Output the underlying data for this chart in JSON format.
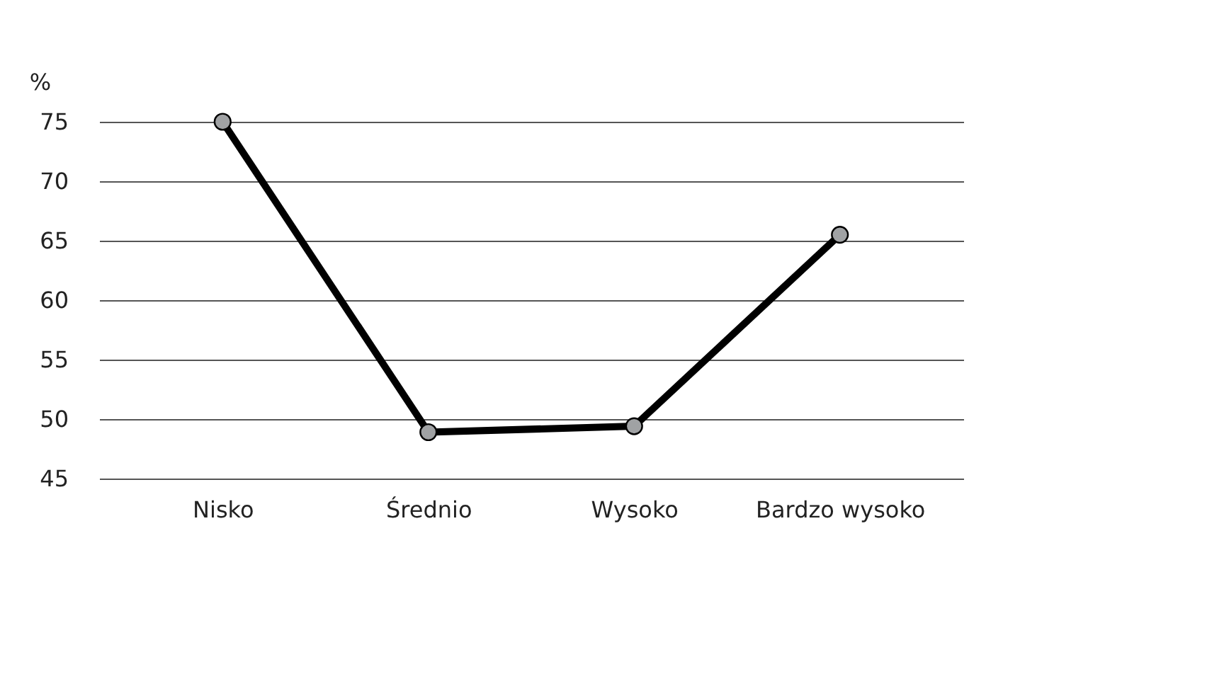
{
  "chart_data": {
    "type": "line",
    "ylabel": "%",
    "categories": [
      "Nisko",
      "Średnio",
      "Wysoko",
      "Bardzo wysoko"
    ],
    "series": [
      {
        "color": "#000000",
        "values": [
          75,
          48.9,
          49.4,
          65.5
        ]
      }
    ],
    "ylim": [
      45,
      75
    ],
    "yticks": [
      45,
      50,
      55,
      60,
      65,
      70,
      75
    ],
    "grid": "y",
    "marker": "circle",
    "line_style": "solid"
  }
}
